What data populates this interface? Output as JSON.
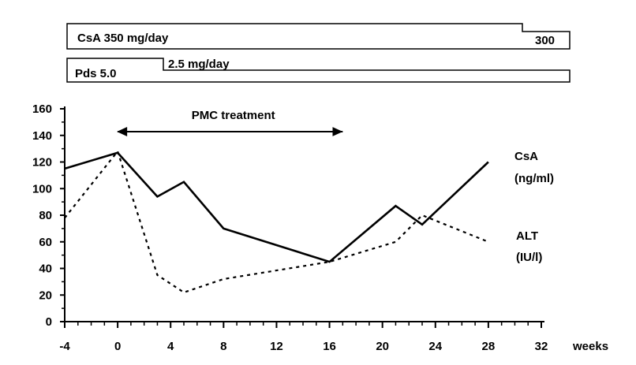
{
  "dosing": {
    "csa": {
      "label": "CsA 350 mg/day",
      "later_label": "300"
    },
    "pds": {
      "label": "Pds 5.0",
      "later_label": "2.5 mg/day"
    }
  },
  "chart_data": {
    "type": "line",
    "xlabel": "weeks",
    "ylabel": "",
    "xlim": [
      -4,
      32
    ],
    "ylim": [
      0,
      160
    ],
    "xticks": [
      -4,
      0,
      4,
      8,
      12,
      16,
      20,
      24,
      28,
      32
    ],
    "yticks": [
      0,
      20,
      40,
      60,
      80,
      100,
      120,
      140,
      160
    ],
    "grid": false,
    "annotation": {
      "text": "PMC treatment",
      "from": 0,
      "to": 17
    },
    "series": [
      {
        "name": "CsA (ng/ml)",
        "label_line1": "CsA",
        "label_line2": "(ng/ml)",
        "style": "solid",
        "x": [
          -4,
          0,
          3,
          5,
          8,
          16,
          21,
          23,
          28
        ],
        "y": [
          115,
          127,
          94,
          105,
          70,
          45,
          87,
          73,
          120
        ]
      },
      {
        "name": "ALT (IU/l)",
        "label_line1": "ALT",
        "label_line2": "(IU/l)",
        "style": "dotted",
        "x": [
          -4,
          0,
          3,
          5,
          8,
          16,
          21,
          23,
          28
        ],
        "y": [
          78,
          128,
          35,
          22,
          32,
          45,
          60,
          80,
          60
        ]
      }
    ]
  }
}
